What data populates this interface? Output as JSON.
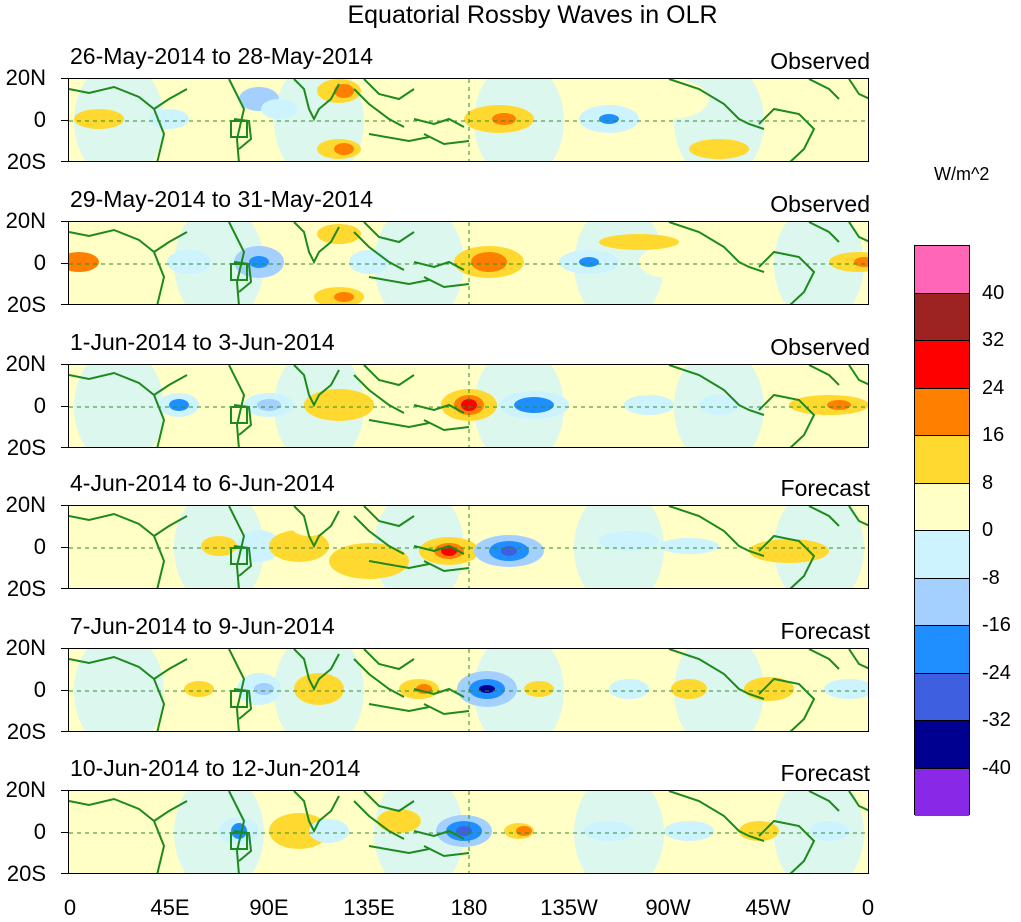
{
  "title": "Equatorial Rossby Waves in OLR",
  "lat_labels": [
    "20N",
    "0",
    "20S"
  ],
  "lon_labels": [
    "0",
    "45E",
    "90E",
    "135E",
    "180",
    "135W",
    "90W",
    "45W",
    "0"
  ],
  "units": "W/m^2",
  "panels": [
    {
      "dates": "26-May-2014 to 28-May-2014",
      "kind": "Observed"
    },
    {
      "dates": "29-May-2014 to 31-May-2014",
      "kind": "Observed"
    },
    {
      "dates": "1-Jun-2014 to 3-Jun-2014",
      "kind": "Observed"
    },
    {
      "dates": "4-Jun-2014 to 6-Jun-2014",
      "kind": "Forecast"
    },
    {
      "dates": "7-Jun-2014 to 9-Jun-2014",
      "kind": "Forecast"
    },
    {
      "dates": "10-Jun-2014 to 12-Jun-2014",
      "kind": "Forecast"
    }
  ],
  "colorbar": {
    "labels": [
      "40",
      "32",
      "24",
      "16",
      "8",
      "0",
      "-8",
      "-16",
      "-24",
      "-32",
      "-40"
    ],
    "colors": [
      "#ff66b8",
      "#9c2322",
      "#ff0000",
      "#ff7f00",
      "#ffd92f",
      "#ffffc6",
      "#cdf3ff",
      "#a3d0ff",
      "#1f8fff",
      "#3e5fe0",
      "#000090",
      "#8a28e8"
    ]
  },
  "colors": {
    "land_outline": "#1c8a1c",
    "equator_line": "#2a8f2a",
    "background": "#ffffff"
  }
}
